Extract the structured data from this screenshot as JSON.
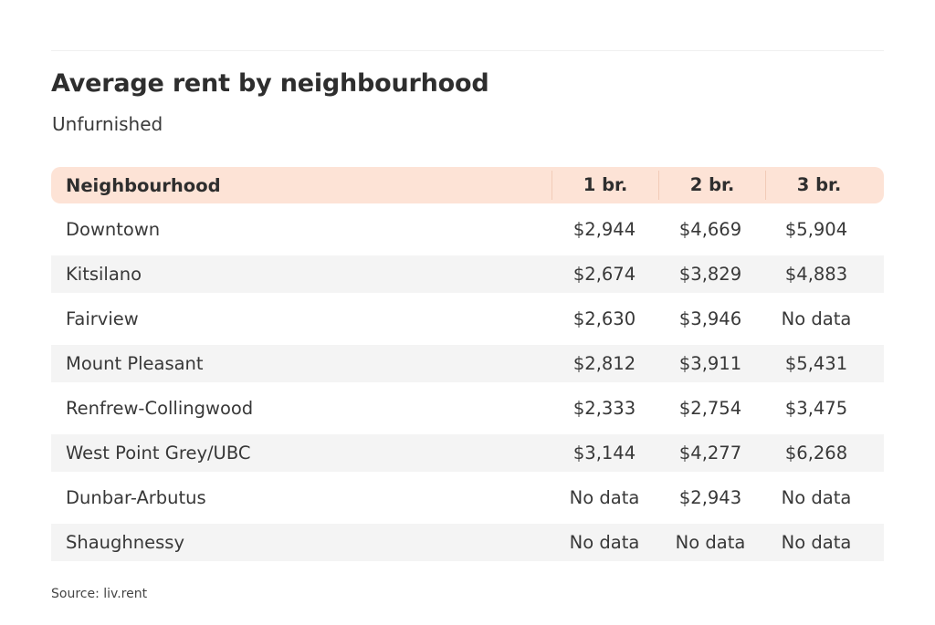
{
  "title": "Average rent by neighbourhood",
  "subtitle": "Unfurnished",
  "colors": {
    "header_bg": "#fde3d6",
    "alt_row_bg": "#f4f4f4",
    "text": "#333333"
  },
  "table": {
    "headers": [
      "Neighbourhood",
      "1 br.",
      "2 br.",
      "3 br."
    ],
    "rows": [
      [
        "Downtown",
        "$2,944",
        "$4,669",
        "$5,904"
      ],
      [
        "Kitsilano",
        "$2,674",
        "$3,829",
        "$4,883"
      ],
      [
        "Fairview",
        "$2,630",
        "$3,946",
        "No data"
      ],
      [
        "Mount Pleasant",
        "$2,812",
        "$3,911",
        "$5,431"
      ],
      [
        "Renfrew-Collingwood",
        "$2,333",
        "$2,754",
        "$3,475"
      ],
      [
        "West Point Grey/UBC",
        "$3,144",
        "$4,277",
        "$6,268"
      ],
      [
        "Dunbar-Arbutus",
        "No data",
        "$2,943",
        "No data"
      ],
      [
        "Shaughnessy",
        "No data",
        "No data",
        "No data"
      ]
    ]
  },
  "source": "Source: liv.rent"
}
